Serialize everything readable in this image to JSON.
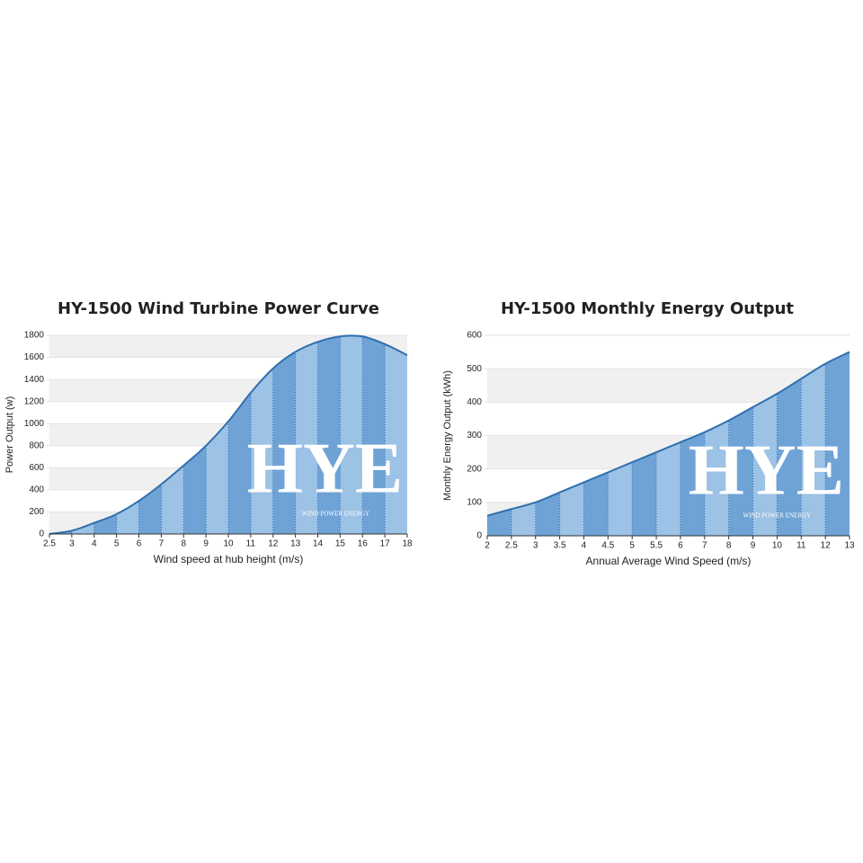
{
  "chart_data": [
    {
      "type": "area",
      "title": "HY-1500 Wind Turbine Power Curve",
      "x_label": "Wind speed at hub height (m/s)",
      "y_label": "Power Output (w)",
      "categories": [
        "2.5",
        "3",
        "4",
        "5",
        "6",
        "7",
        "8",
        "9",
        "10",
        "11",
        "12",
        "13",
        "14",
        "15",
        "16",
        "17",
        "18"
      ],
      "values": [
        0,
        30,
        100,
        180,
        300,
        450,
        620,
        800,
        1020,
        1280,
        1500,
        1650,
        1740,
        1790,
        1790,
        1720,
        1620
      ],
      "color": "#2f6fae",
      "ylim": [
        0,
        1800
      ],
      "yticks": [
        0,
        200,
        400,
        600,
        800,
        1000,
        1200,
        1400,
        1600,
        1800
      ],
      "grid": true,
      "watermark": "HYE",
      "watermark_sub": "WIND POWER ENERGY"
    },
    {
      "type": "area",
      "title": "HY-1500 Monthly Energy Output",
      "x_label": "Annual Average Wind Speed (m/s)",
      "y_label": "Monthly Energy Output (kWh)",
      "categories": [
        "2",
        "2.5",
        "3",
        "3.5",
        "4",
        "4.5",
        "5",
        "5.5",
        "6",
        "7",
        "8",
        "9",
        "10",
        "11",
        "12",
        "13"
      ],
      "values": [
        60,
        80,
        100,
        130,
        160,
        190,
        220,
        250,
        280,
        310,
        345,
        385,
        425,
        470,
        515,
        550
      ],
      "color": "#2f6fae",
      "ylim": [
        0,
        600
      ],
      "yticks": [
        0,
        100,
        200,
        300,
        400,
        500,
        600
      ],
      "grid": true,
      "watermark": "HYE",
      "watermark_sub": "WIND POWER ENERGY"
    }
  ]
}
